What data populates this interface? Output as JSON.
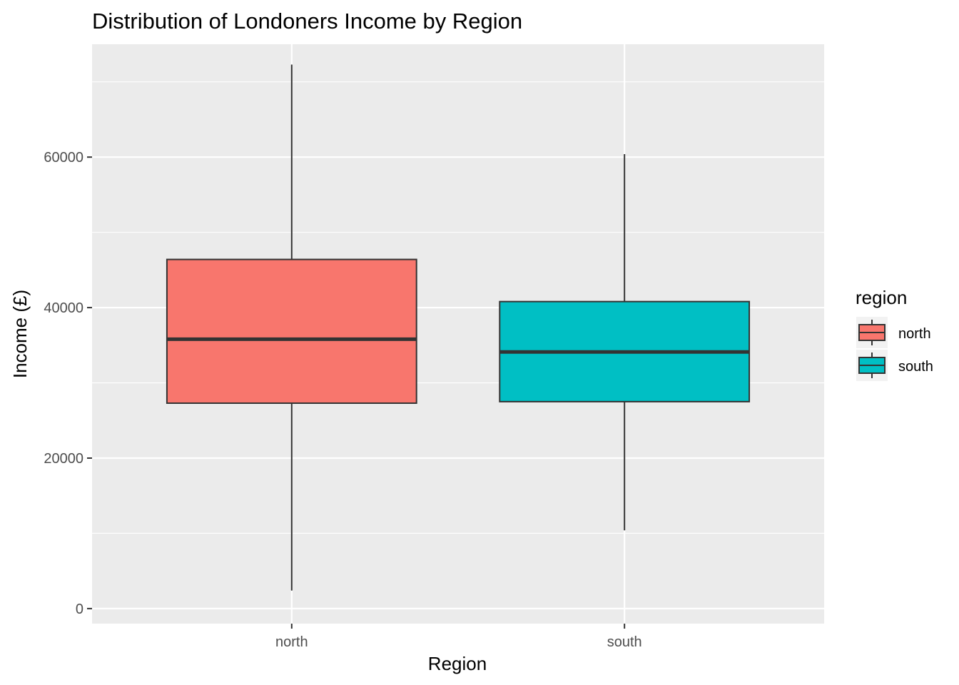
{
  "chart_data": {
    "type": "boxplot",
    "title": "Distribution of Londoners Income by Region",
    "xlabel": "Region",
    "ylabel": "Income (£)",
    "categories": [
      "north",
      "south"
    ],
    "ylim": [
      -2000,
      75000
    ],
    "yticks": [
      0,
      20000,
      40000,
      60000
    ],
    "ytick_labels": [
      "0",
      "20000",
      "40000",
      "60000"
    ],
    "grid": true,
    "legend": {
      "title": "region",
      "placement": "right",
      "entries": [
        "north",
        "south"
      ]
    },
    "series": [
      {
        "name": "north",
        "color": "#F8766D",
        "whisker_low": 2400,
        "q1": 27300,
        "median": 35800,
        "q3": 46400,
        "whisker_high": 72300
      },
      {
        "name": "south",
        "color": "#00BFC4",
        "whisker_low": 10400,
        "q1": 27500,
        "median": 34100,
        "q3": 40800,
        "whisker_high": 60400
      }
    ]
  }
}
